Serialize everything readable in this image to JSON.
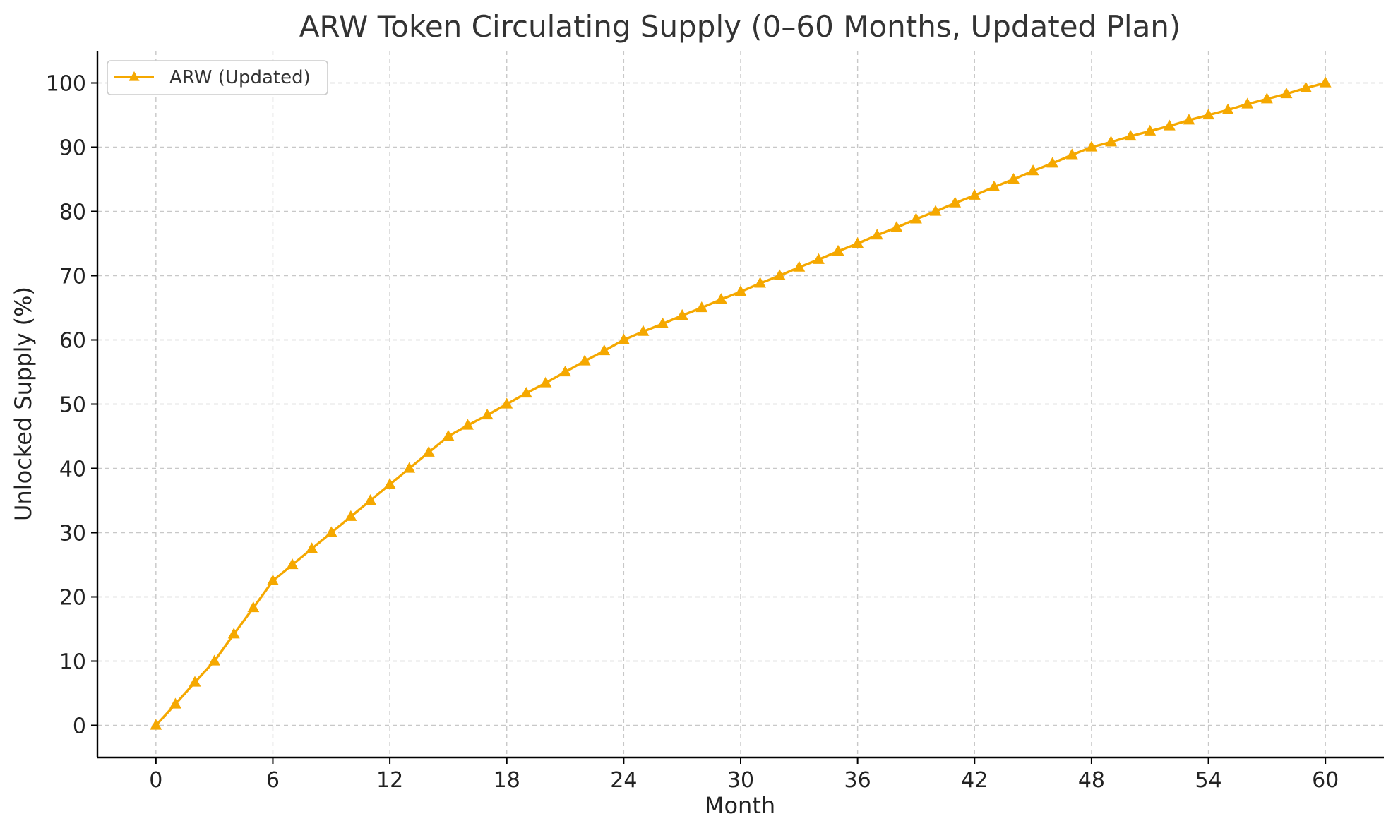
{
  "chart_data": {
    "type": "line",
    "title": "ARW Token Circulating Supply (0–60 Months, Updated Plan)",
    "xlabel": "Month",
    "ylabel": "Unlocked Supply (%)",
    "xlim": [
      -3,
      63
    ],
    "ylim": [
      -5,
      105
    ],
    "x_ticks": [
      0,
      6,
      12,
      18,
      24,
      30,
      36,
      42,
      48,
      54,
      60
    ],
    "y_ticks": [
      0,
      10,
      20,
      30,
      40,
      50,
      60,
      70,
      80,
      90,
      100
    ],
    "grid": true,
    "legend_position": "top-left",
    "x": [
      0,
      1,
      2,
      3,
      4,
      5,
      6,
      7,
      8,
      9,
      10,
      11,
      12,
      13,
      14,
      15,
      16,
      17,
      18,
      19,
      20,
      21,
      22,
      23,
      24,
      25,
      26,
      27,
      28,
      29,
      30,
      31,
      32,
      33,
      34,
      35,
      36,
      37,
      38,
      39,
      40,
      41,
      42,
      43,
      44,
      45,
      46,
      47,
      48,
      49,
      50,
      51,
      52,
      53,
      54,
      55,
      56,
      57,
      58,
      59,
      60
    ],
    "series": [
      {
        "name": "ARW (Updated)",
        "color": "#F5A800",
        "marker": "triangle",
        "values": [
          0,
          3.3,
          6.7,
          10,
          14.2,
          18.3,
          22.5,
          25,
          27.5,
          30,
          32.5,
          35,
          37.5,
          40,
          42.5,
          45,
          46.7,
          48.3,
          50,
          51.7,
          53.3,
          55,
          56.7,
          58.3,
          60,
          61.3,
          62.5,
          63.8,
          65,
          66.3,
          67.5,
          68.8,
          70,
          71.3,
          72.5,
          73.8,
          75,
          76.3,
          77.5,
          78.8,
          80,
          81.3,
          82.5,
          83.8,
          85,
          86.3,
          87.5,
          88.8,
          90,
          90.8,
          91.7,
          92.5,
          93.3,
          94.2,
          95,
          95.8,
          96.7,
          97.5,
          98.3,
          99.2,
          100
        ]
      }
    ]
  }
}
